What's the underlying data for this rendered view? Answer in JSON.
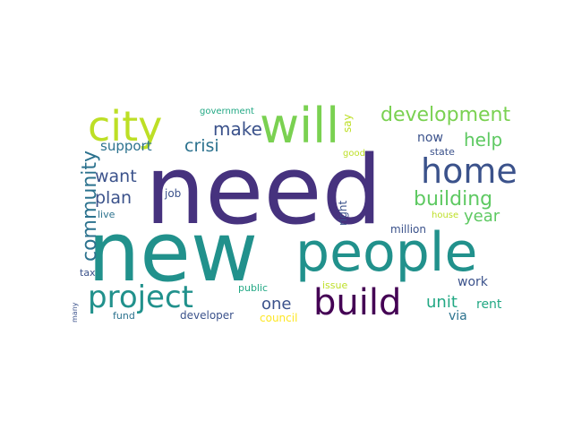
{
  "words": [
    {
      "text": "need",
      "color": "#46327e"
    },
    {
      "text": "new",
      "color": "#21918c"
    },
    {
      "text": "people",
      "color": "#21918c"
    },
    {
      "text": "will",
      "color": "#7ad151"
    },
    {
      "text": "city",
      "color": "#bddf26"
    },
    {
      "text": "home",
      "color": "#3b528b"
    },
    {
      "text": "build",
      "color": "#440154"
    },
    {
      "text": "project",
      "color": "#21918c"
    },
    {
      "text": "development",
      "color": "#7ad151"
    },
    {
      "text": "community",
      "color": "#2c728e"
    },
    {
      "text": "building",
      "color": "#5ec962"
    },
    {
      "text": "help",
      "color": "#5ec962"
    },
    {
      "text": "make",
      "color": "#3b528b"
    },
    {
      "text": "want",
      "color": "#3b528b"
    },
    {
      "text": "plan",
      "color": "#3b528b"
    },
    {
      "text": "crisi",
      "color": "#2c728e"
    },
    {
      "text": "support",
      "color": "#2c728e"
    },
    {
      "text": "year",
      "color": "#5ec962"
    },
    {
      "text": "unit",
      "color": "#22a884"
    },
    {
      "text": "one",
      "color": "#3b528b"
    },
    {
      "text": "now",
      "color": "#3b528b"
    },
    {
      "text": "work",
      "color": "#3b528b"
    },
    {
      "text": "rent",
      "color": "#22a884"
    },
    {
      "text": "via",
      "color": "#2c728e"
    },
    {
      "text": "right",
      "color": "#3b528b"
    },
    {
      "text": "say",
      "color": "#bddf26"
    },
    {
      "text": "government",
      "color": "#22a884"
    },
    {
      "text": "good",
      "color": "#bddf26"
    },
    {
      "text": "state",
      "color": "#3b528b"
    },
    {
      "text": "house",
      "color": "#bddf26"
    },
    {
      "text": "million",
      "color": "#3b528b"
    },
    {
      "text": "job",
      "color": "#3b528b"
    },
    {
      "text": "live",
      "color": "#2c728e"
    },
    {
      "text": "tax",
      "color": "#3b528b"
    },
    {
      "text": "public",
      "color": "#22a884"
    },
    {
      "text": "issue",
      "color": "#bddf26"
    },
    {
      "text": "fund",
      "color": "#2c728e"
    },
    {
      "text": "developer",
      "color": "#3b528b"
    },
    {
      "text": "council",
      "color": "#fde725"
    },
    {
      "text": "many",
      "color": "#3b528b"
    }
  ]
}
